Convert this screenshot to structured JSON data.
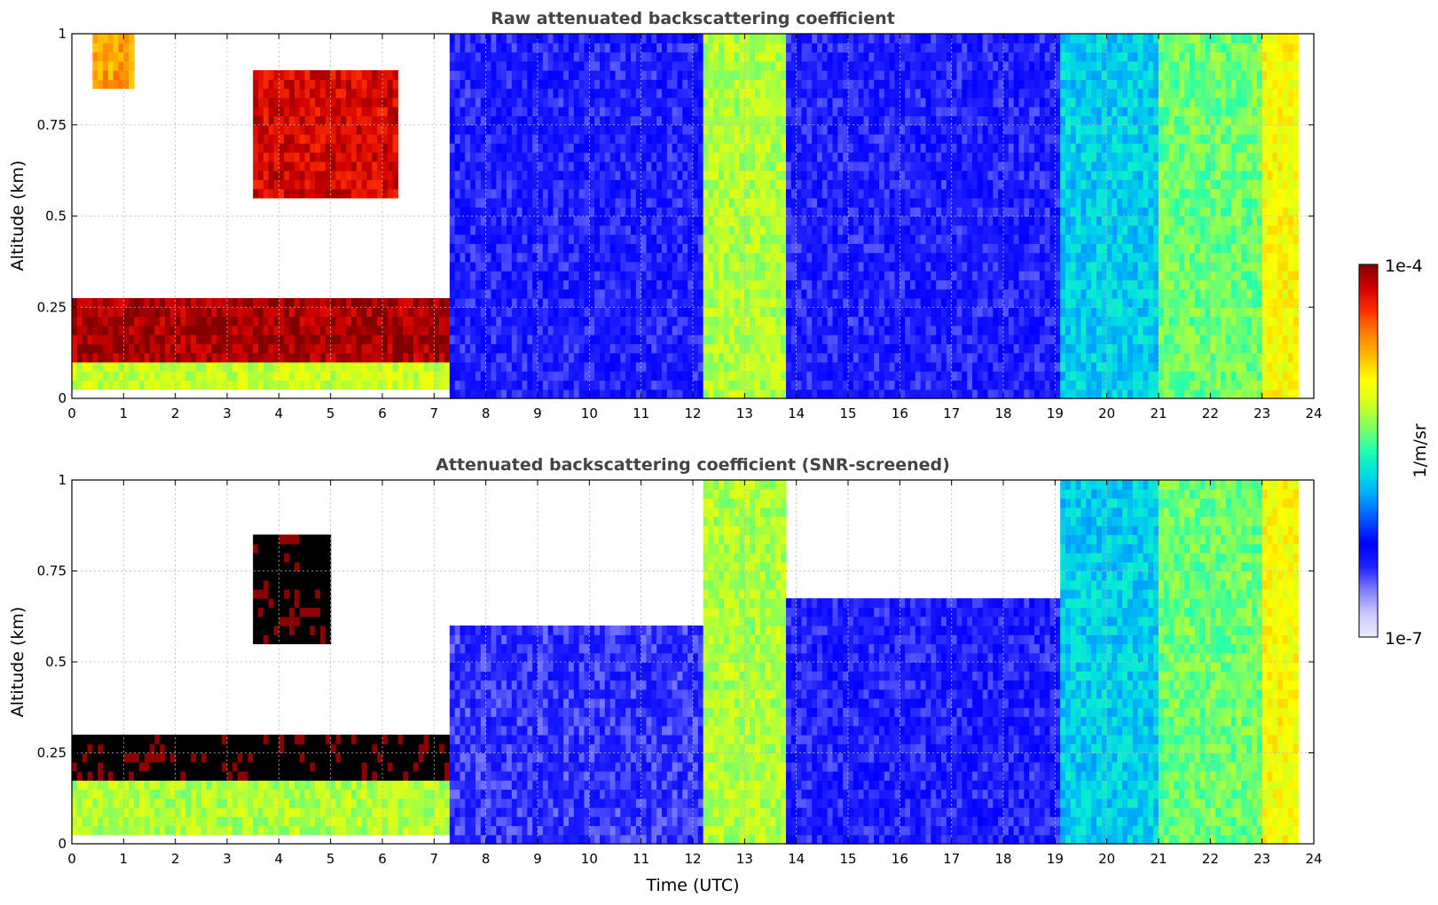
{
  "chart_data": [
    {
      "type": "heatmap",
      "title": "Raw attenuated backscattering coefficient",
      "xlabel": "",
      "ylabel": "Altitude (km)",
      "xlim": [
        0,
        24
      ],
      "ylim": [
        0,
        1
      ],
      "x_ticks": [
        "0",
        "1",
        "2",
        "3",
        "4",
        "5",
        "6",
        "7",
        "8",
        "9",
        "10",
        "11",
        "12",
        "13",
        "14",
        "15",
        "16",
        "17",
        "18",
        "19",
        "20",
        "21",
        "22",
        "23",
        "24"
      ],
      "y_ticks": [
        "0",
        "0.25",
        "0.5",
        "0.75",
        "1"
      ],
      "grid": true,
      "data_end_time": 23.7,
      "scale": "log",
      "regions": [
        {
          "t0": 0.0,
          "t1": 7.3,
          "z0": 0.1,
          "z1": 0.27,
          "level": 0.97
        },
        {
          "t0": 0.0,
          "t1": 7.3,
          "z0": 0.03,
          "z1": 0.1,
          "level": 0.62
        },
        {
          "t0": 3.5,
          "t1": 6.3,
          "z0": 0.55,
          "z1": 0.9,
          "level": 0.93
        },
        {
          "t0": 0.4,
          "t1": 1.2,
          "z0": 0.85,
          "z1": 1.0,
          "level": 0.78
        },
        {
          "t0": 7.3,
          "t1": 12.2,
          "z0": 0.0,
          "z1": 1.0,
          "level": 0.2
        },
        {
          "t0": 12.2,
          "t1": 13.8,
          "z0": 0.0,
          "z1": 1.0,
          "level": 0.6
        },
        {
          "t0": 13.8,
          "t1": 19.1,
          "z0": 0.0,
          "z1": 1.0,
          "level": 0.2
        },
        {
          "t0": 19.1,
          "t1": 21.0,
          "z0": 0.0,
          "z1": 1.0,
          "level": 0.42
        },
        {
          "t0": 21.0,
          "t1": 23.0,
          "z0": 0.0,
          "z1": 1.0,
          "level": 0.55
        },
        {
          "t0": 23.0,
          "t1": 23.7,
          "z0": 0.0,
          "z1": 1.0,
          "level": 0.68
        }
      ]
    },
    {
      "type": "heatmap",
      "title": "Attenuated backscattering coefficient (SNR-screened)",
      "xlabel": "Time (UTC)",
      "ylabel": "Altitude (km)",
      "xlim": [
        0,
        24
      ],
      "ylim": [
        0,
        1
      ],
      "x_ticks": [
        "0",
        "1",
        "2",
        "3",
        "4",
        "5",
        "6",
        "7",
        "8",
        "9",
        "10",
        "11",
        "12",
        "13",
        "14",
        "15",
        "16",
        "17",
        "18",
        "19",
        "20",
        "21",
        "22",
        "23",
        "24"
      ],
      "y_ticks": [
        "0",
        "0.25",
        "0.5",
        "0.75",
        "1"
      ],
      "grid": true,
      "data_end_time": 23.7,
      "scale": "log",
      "regions": [
        {
          "t0": 0.0,
          "t1": 7.3,
          "z0": 0.18,
          "z1": 0.3,
          "level": 1.0,
          "saturated": true
        },
        {
          "t0": 0.0,
          "t1": 7.3,
          "z0": 0.03,
          "z1": 0.18,
          "level": 0.6
        },
        {
          "t0": 3.5,
          "t1": 5.0,
          "z0": 0.55,
          "z1": 0.85,
          "level": 1.0,
          "saturated": true
        },
        {
          "t0": 7.3,
          "t1": 12.2,
          "z0": 0.0,
          "z1": 0.6,
          "level": 0.18
        },
        {
          "t0": 12.2,
          "t1": 13.8,
          "z0": 0.0,
          "z1": 1.0,
          "level": 0.6
        },
        {
          "t0": 13.8,
          "t1": 19.1,
          "z0": 0.0,
          "z1": 0.68,
          "level": 0.2
        },
        {
          "t0": 19.1,
          "t1": 21.0,
          "z0": 0.0,
          "z1": 1.0,
          "level": 0.42
        },
        {
          "t0": 21.0,
          "t1": 23.0,
          "z0": 0.0,
          "z1": 1.0,
          "level": 0.55
        },
        {
          "t0": 23.0,
          "t1": 23.7,
          "z0": 0.0,
          "z1": 1.0,
          "level": 0.68
        }
      ]
    }
  ],
  "colorbar": {
    "min_label": "1e-7",
    "max_label": "1e-4",
    "unit_label": "1/m/sr",
    "colors": [
      "#ececff",
      "#c8c8ff",
      "#8080ff",
      "#2020ff",
      "#0000ff",
      "#0050ff",
      "#00a0ff",
      "#00e0e0",
      "#20ffb0",
      "#80ff60",
      "#d0ff20",
      "#ffff00",
      "#ffc000",
      "#ff8000",
      "#ff3000",
      "#d00000",
      "#800000"
    ]
  }
}
